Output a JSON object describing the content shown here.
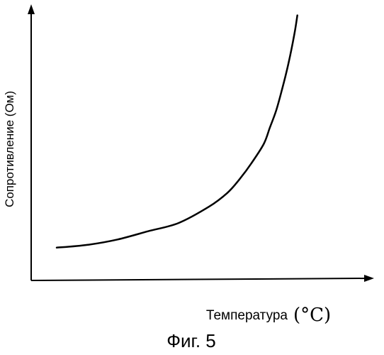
{
  "figure_label": "Фиг. 5",
  "chart_data": {
    "type": "line",
    "ylabel": "Сопротивление (Ом)",
    "xlabel": "Температура",
    "xlabel_unit": "(°C)",
    "grid": false,
    "line_color": "#000000",
    "axis_color": "#000000",
    "ticks": false,
    "curve_trend": "exponential-increase",
    "xlim": [
      0,
      1
    ],
    "ylim": [
      0,
      1
    ],
    "series": [
      {
        "x": [
          0.0,
          0.1,
          0.2,
          0.3,
          0.4,
          0.5,
          0.56,
          0.6,
          0.64,
          0.68,
          0.7,
          0.72,
          0.74,
          0.76,
          0.78,
          0.79
        ],
        "y": [
          0.12,
          0.13,
          0.15,
          0.18,
          0.21,
          0.27,
          0.32,
          0.37,
          0.43,
          0.5,
          0.56,
          0.62,
          0.7,
          0.79,
          0.9,
          0.97
        ]
      }
    ]
  }
}
